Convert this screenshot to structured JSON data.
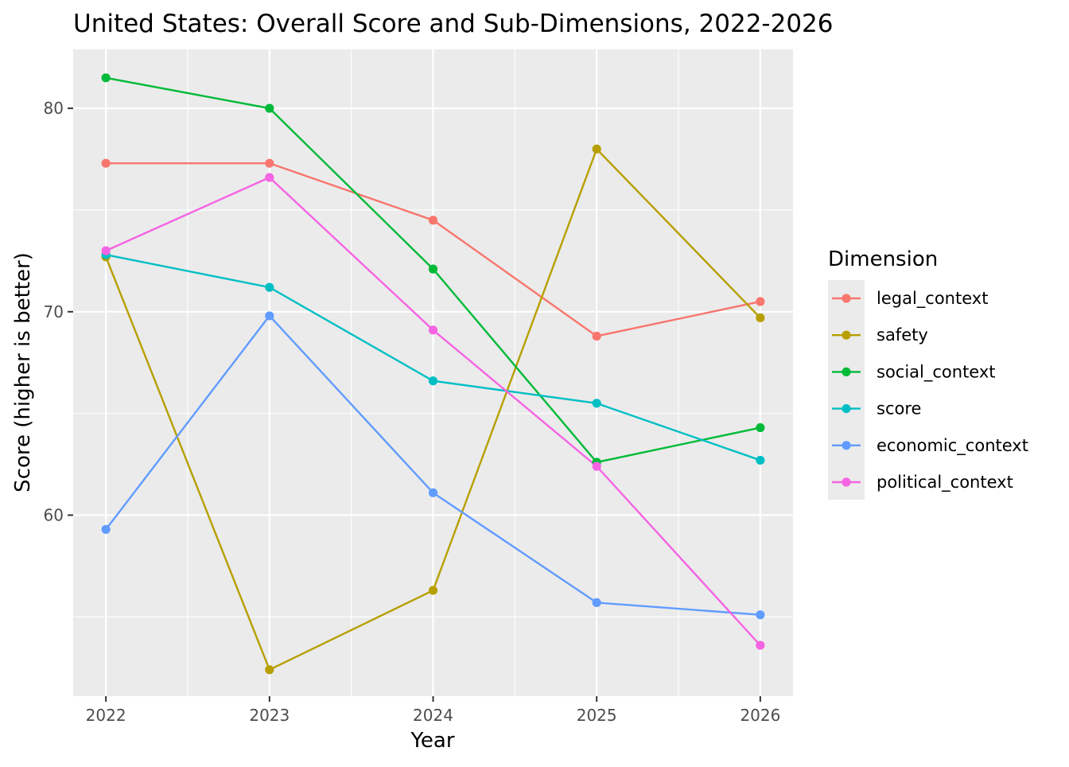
{
  "chart_data": {
    "type": "line",
    "title": "United States: Overall Score and Sub-Dimensions, 2022-2026",
    "xlabel": "Year",
    "ylabel": "Score (higher is better)",
    "x": [
      2022,
      2023,
      2024,
      2025,
      2026
    ],
    "x_tick_labels": [
      "2022",
      "2023",
      "2024",
      "2025",
      "2026"
    ],
    "xlim": [
      2021.8,
      2026.2
    ],
    "ylim": [
      51.1,
      82.9
    ],
    "y_ticks": [
      60,
      70,
      80
    ],
    "y_tick_labels": [
      "60",
      "70",
      "80"
    ],
    "grid": true,
    "legend": {
      "title": "Dimension",
      "position": "right"
    },
    "series": [
      {
        "name": "legal_context",
        "color": "#F8766D",
        "values": [
          77.3,
          77.3,
          74.5,
          68.8,
          70.5
        ]
      },
      {
        "name": "safety",
        "color": "#B79F00",
        "values": [
          72.7,
          52.4,
          56.3,
          78.0,
          69.7
        ]
      },
      {
        "name": "social_context",
        "color": "#00BA38",
        "values": [
          81.5,
          80.0,
          72.1,
          62.6,
          64.3
        ]
      },
      {
        "name": "score",
        "color": "#00BFC4",
        "values": [
          72.8,
          71.2,
          66.6,
          65.5,
          62.7
        ]
      },
      {
        "name": "economic_context",
        "color": "#619CFF",
        "values": [
          59.3,
          69.8,
          61.1,
          55.7,
          55.1
        ]
      },
      {
        "name": "political_context",
        "color": "#F564E3",
        "values": [
          73.0,
          76.6,
          69.1,
          62.4,
          53.6
        ]
      }
    ]
  }
}
